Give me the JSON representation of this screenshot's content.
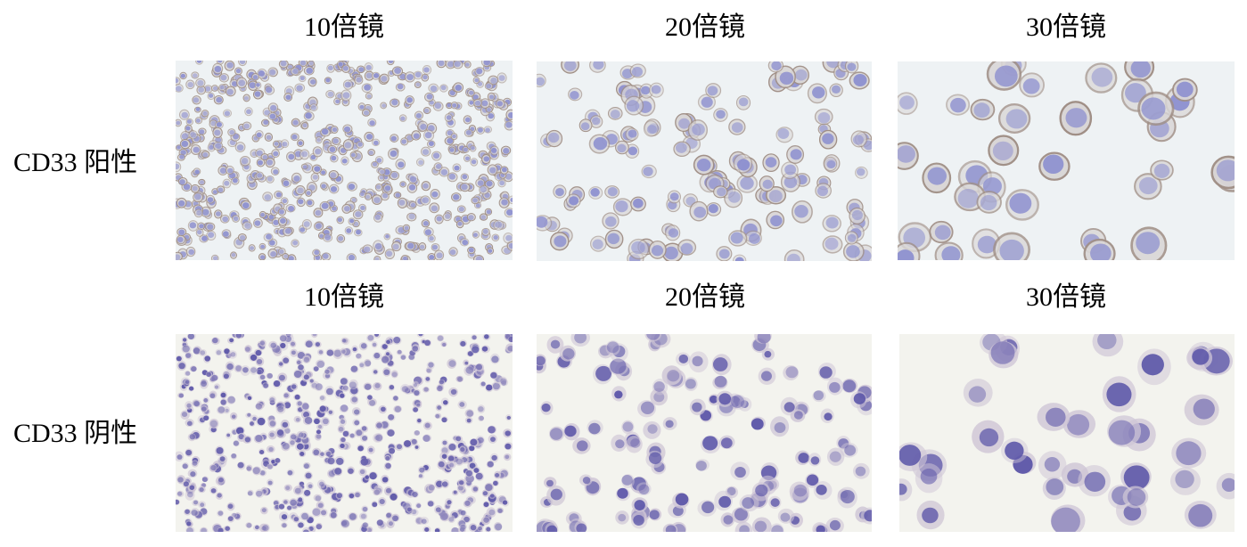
{
  "figure": {
    "rows": [
      {
        "label": "CD33 阳性",
        "stain": "positive",
        "columns": [
          {
            "title": "10倍镜",
            "magnification": 10
          },
          {
            "title": "20倍镜",
            "magnification": 20
          },
          {
            "title": "30倍镜",
            "magnification": 30
          }
        ]
      },
      {
        "label": "CD33 阴性",
        "stain": "negative",
        "columns": [
          {
            "title": "10倍镜",
            "magnification": 10
          },
          {
            "title": "20倍镜",
            "magnification": 20
          },
          {
            "title": "30倍镜",
            "magnification": 30
          }
        ]
      }
    ],
    "colors": {
      "positive_background": "#eef2f4",
      "positive_nucleus": "#8c8fcf",
      "positive_membrane": "#a08f86",
      "negative_background": "#f3f3ee",
      "negative_nucleus": "#5b55a8",
      "negative_cytoplasm": "#cfc6d6"
    }
  }
}
